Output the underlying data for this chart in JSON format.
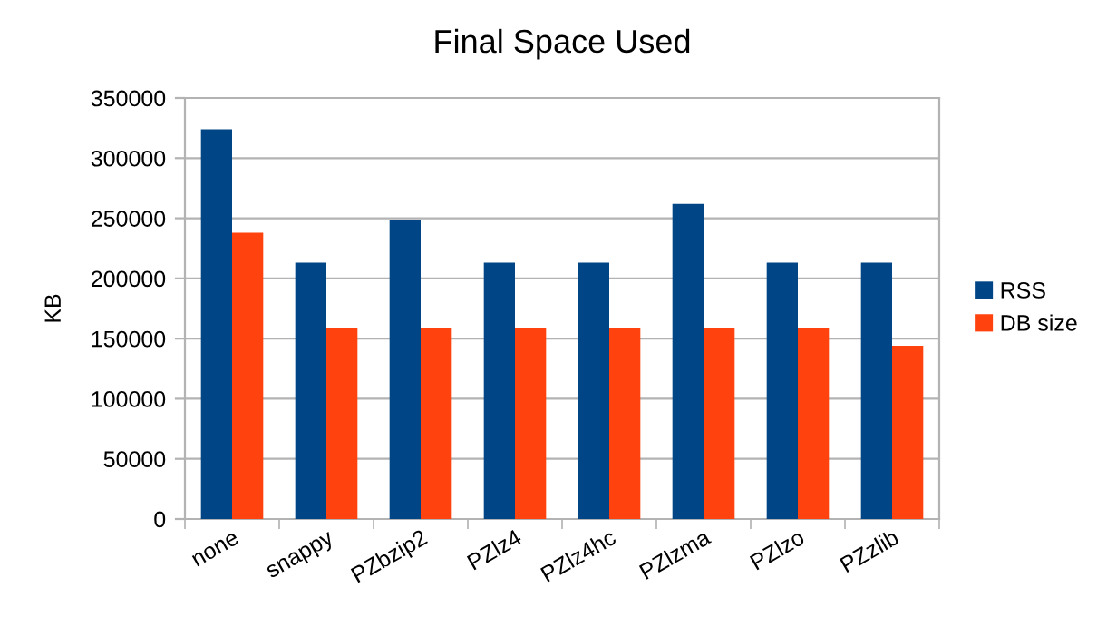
{
  "chart_data": {
    "type": "bar",
    "title": "Final Space Used",
    "ylabel": "KB",
    "categories": [
      "none",
      "snappy",
      "PZbzip2",
      "PZlz4",
      "PZlz4hc",
      "PZlzma",
      "PZlzo",
      "PZzlib"
    ],
    "series": [
      {
        "name": "RSS",
        "color": "#004586",
        "values": [
          324000,
          213000,
          249000,
          213000,
          213000,
          262000,
          213000,
          213000
        ]
      },
      {
        "name": "DB size",
        "color": "#ff420e",
        "values": [
          238000,
          159000,
          159000,
          159000,
          159000,
          159000,
          159000,
          144000
        ]
      }
    ],
    "ylim": [
      0,
      350000
    ],
    "yticks": [
      0,
      50000,
      100000,
      150000,
      200000,
      250000,
      300000,
      350000
    ],
    "grid": "y",
    "legend": "right"
  }
}
